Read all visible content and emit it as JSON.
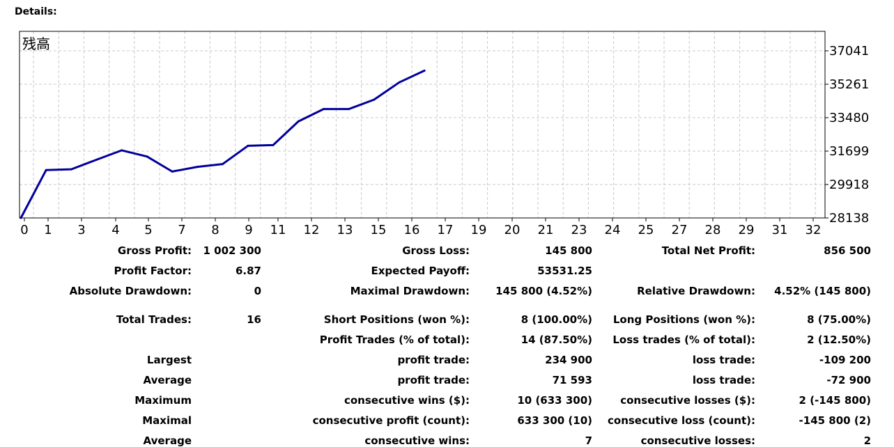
{
  "heading": "Details:",
  "chart_data": {
    "type": "line",
    "title": "残高",
    "x_ticks": [
      0,
      1,
      3,
      4,
      5,
      7,
      8,
      9,
      11,
      12,
      13,
      15,
      16,
      17,
      19,
      20,
      21,
      23,
      24,
      25,
      27,
      28,
      29,
      31,
      32
    ],
    "y_ticks": [
      28138,
      29918,
      31699,
      33480,
      35261,
      37041
    ],
    "ylim": [
      28138,
      37041
    ],
    "grid": true,
    "y_axis_side": "right",
    "line_color": "#00009b",
    "series": [
      {
        "x": [
          0,
          1,
          2,
          3,
          4,
          5,
          6,
          7,
          8,
          9,
          10,
          11,
          12,
          13,
          14,
          15,
          16
        ],
        "y": [
          28138,
          30690,
          30730,
          31240,
          31740,
          31410,
          30610,
          30860,
          31010,
          31980,
          32020,
          33280,
          33940,
          33940,
          34440,
          35360,
          35990
        ]
      }
    ]
  },
  "stats": {
    "rows": [
      {
        "l1": "Gross Profit:",
        "v1": "1 002 300",
        "l2": "Gross Loss:",
        "v2": "145 800",
        "l3": "Total Net Profit:",
        "v3": "856 500"
      },
      {
        "l1": "Profit Factor:",
        "v1": "6.87",
        "l2": "Expected Payoff:",
        "v2": "53531.25",
        "l3": "",
        "v3": ""
      },
      {
        "l1": "Absolute Drawdown:",
        "v1": "0",
        "l2": "Maximal Drawdown:",
        "v2": "145 800 (4.52%)",
        "l3": "Relative Drawdown:",
        "v3": "4.52% (145 800)"
      },
      {
        "l1": "Total Trades:",
        "v1": "16",
        "l2": "Short Positions (won %):",
        "v2": "8 (100.00%)",
        "l3": "Long Positions (won %):",
        "v3": "8 (75.00%)"
      },
      {
        "l1": "",
        "v1": "",
        "l2": "Profit Trades (% of total):",
        "v2": "14 (87.50%)",
        "l3": "Loss trades (% of total):",
        "v3": "2 (12.50%)"
      },
      {
        "l1": "Largest",
        "v1": "",
        "l2": "profit trade:",
        "v2": "234 900",
        "l3": "loss trade:",
        "v3": "-109 200"
      },
      {
        "l1": "Average",
        "v1": "",
        "l2": "profit trade:",
        "v2": "71 593",
        "l3": "loss trade:",
        "v3": "-72 900"
      },
      {
        "l1": "Maximum",
        "v1": "",
        "l2": "consecutive wins ($):",
        "v2": "10 (633 300)",
        "l3": "consecutive losses ($):",
        "v3": "2 (-145 800)"
      },
      {
        "l1": "Maximal",
        "v1": "",
        "l2": "consecutive profit (count):",
        "v2": "633 300 (10)",
        "l3": "consecutive loss (count):",
        "v3": "-145 800 (2)"
      },
      {
        "l1": "Average",
        "v1": "",
        "l2": "consecutive wins:",
        "v2": "7",
        "l3": "consecutive losses:",
        "v3": "2"
      }
    ]
  }
}
